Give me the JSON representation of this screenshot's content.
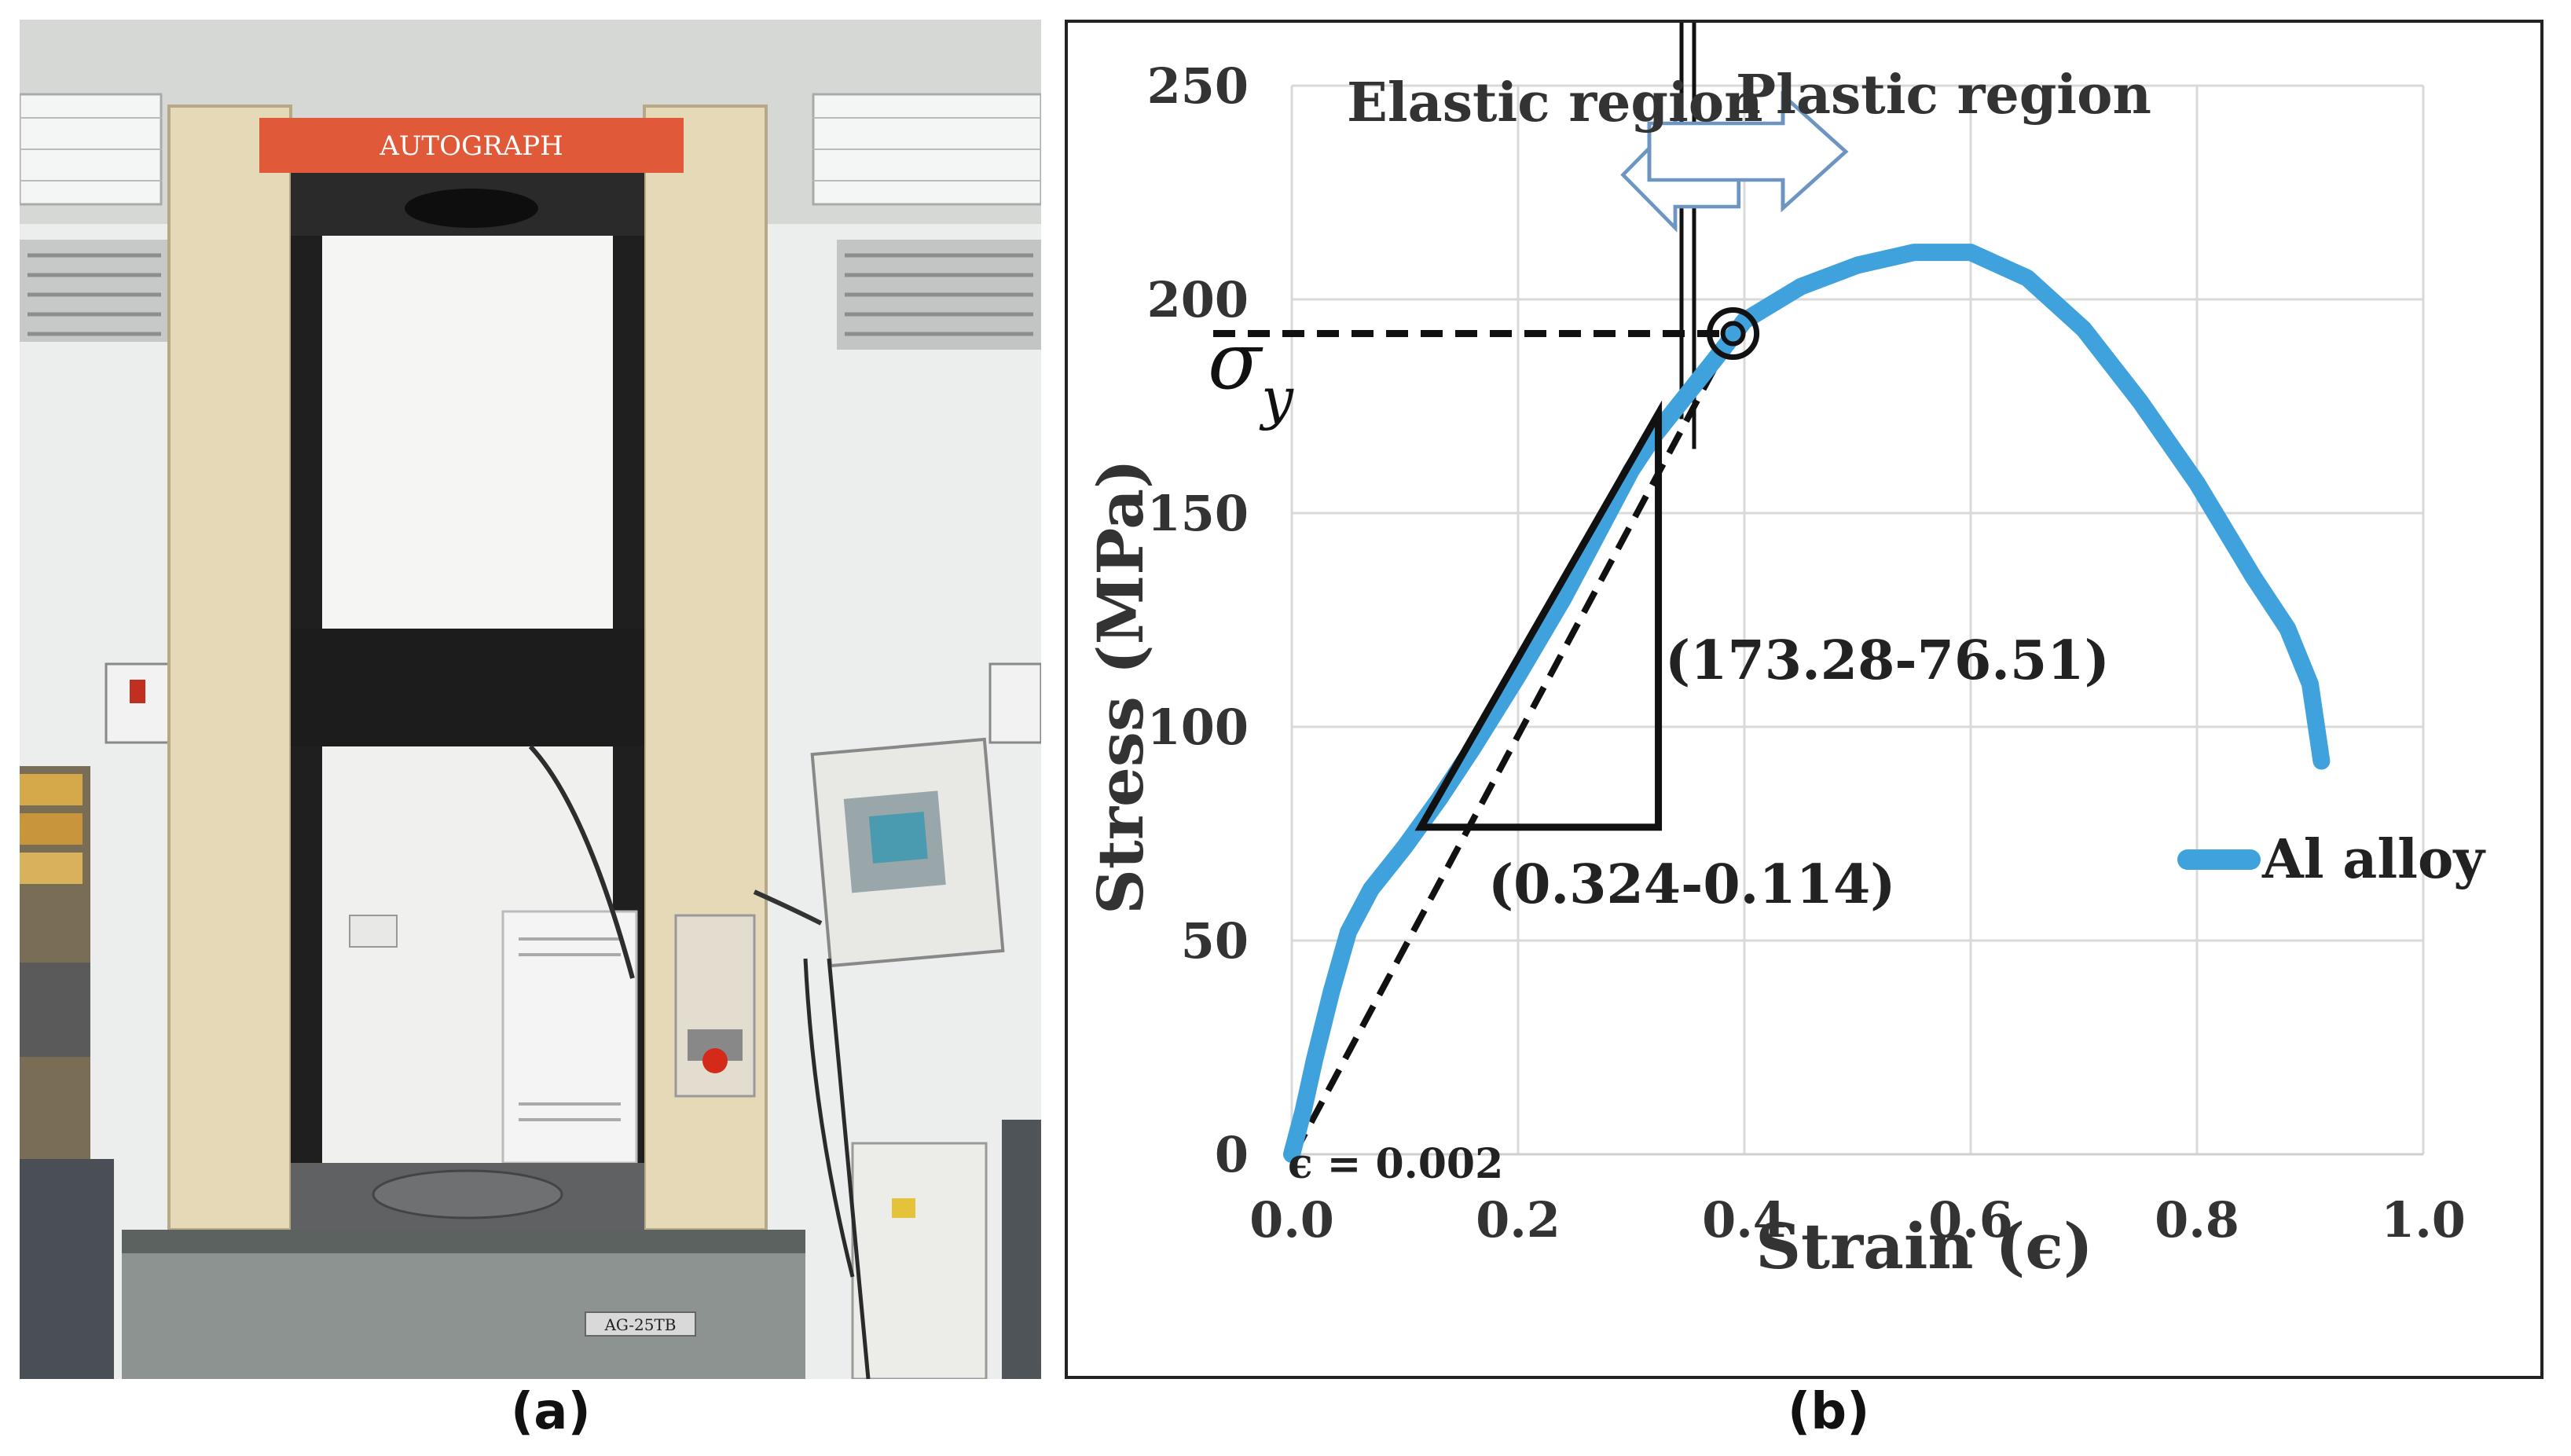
{
  "panel_a": {
    "caption": "(a)",
    "machine_label": "AUTOGRAPH",
    "base_label": "AG-25TB"
  },
  "panel_b": {
    "caption": "(b)",
    "annotations": {
      "elastic_region": "Elastic region",
      "plastic_region": "Plastic region",
      "sigma_y": "σ",
      "sigma_y_subscript": "y",
      "rise": "(173.28-76.51)",
      "run": "(0.324-0.114)",
      "offset_strain": "ϵ = 0.002"
    }
  },
  "chart_data": {
    "type": "line",
    "title": "",
    "xlabel": "Strain (ϵ)",
    "ylabel": "Stress (MPa)",
    "xlim": [
      0.0,
      1.0
    ],
    "ylim": [
      0,
      250
    ],
    "xticks": [
      "0.0",
      "0.2",
      "0.4",
      "0.6",
      "0.8",
      "1.0"
    ],
    "yticks": [
      "0",
      "50",
      "100",
      "150",
      "200",
      "250"
    ],
    "grid": true,
    "legend": "right",
    "series": [
      {
        "name": "Al alloy",
        "color": "#3fa2dd",
        "x": [
          0.0,
          0.01,
          0.02,
          0.035,
          0.05,
          0.07,
          0.1,
          0.13,
          0.16,
          0.2,
          0.24,
          0.28,
          0.3,
          0.32,
          0.35,
          0.38,
          0.4,
          0.45,
          0.5,
          0.55,
          0.6,
          0.65,
          0.7,
          0.75,
          0.8,
          0.85,
          0.88,
          0.9,
          0.91
        ],
        "y": [
          0,
          10,
          22,
          38,
          52,
          62,
          72,
          83,
          95,
          112,
          130,
          150,
          160,
          168,
          178,
          188,
          195,
          203,
          208,
          211,
          211,
          205,
          193,
          176,
          157,
          135,
          123,
          110,
          92
        ]
      }
    ],
    "reference_lines": {
      "offset_line": {
        "x": [
          0.002,
          0.39
        ],
        "y": [
          0,
          192
        ]
      },
      "yield_stress_guide": {
        "x": [
          0.0,
          0.39
        ],
        "y": [
          192,
          192
        ]
      },
      "slope_triangle": {
        "x": [
          0.114,
          0.324,
          0.324
        ],
        "y": [
          76.51,
          76.51,
          173.28
        ]
      },
      "elastic_plastic_divider_x": 0.35,
      "yield_point": {
        "x": 0.39,
        "y": 192
      }
    },
    "colors": {
      "curve": "#3fa2dd",
      "arrow": "#6d95c2",
      "grid": "#d9d9d9"
    }
  }
}
